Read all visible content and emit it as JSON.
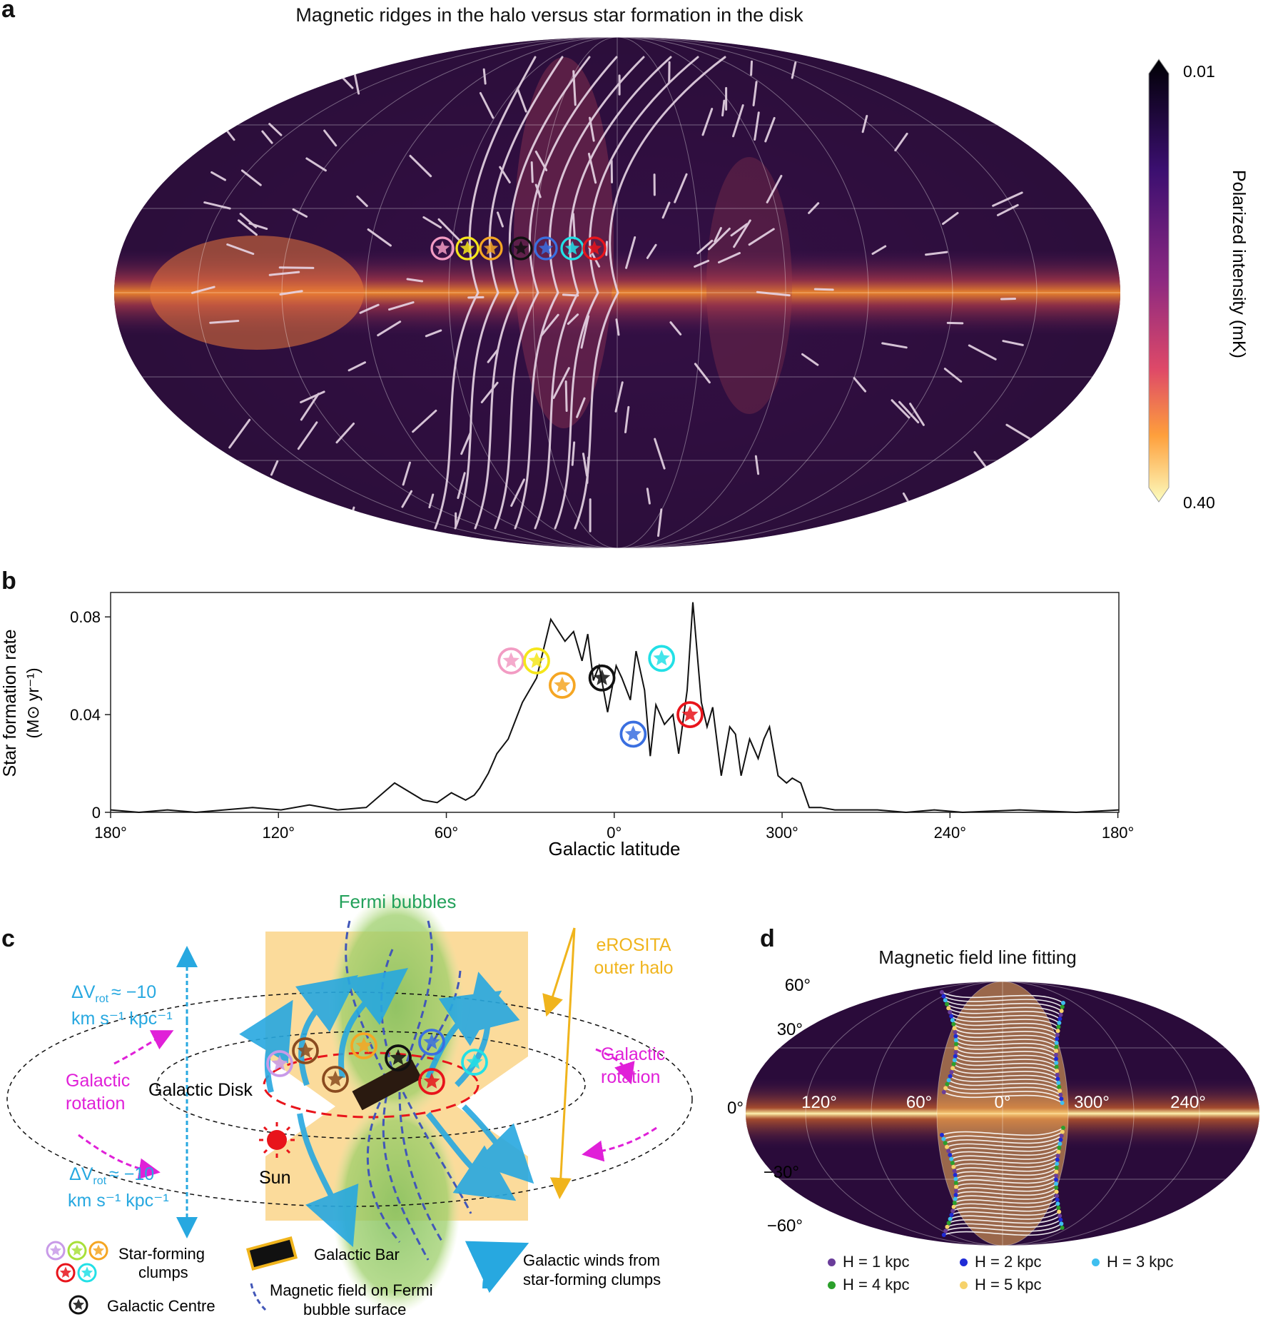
{
  "panel_a": {
    "label": "a",
    "title": "Magnetic ridges in the halo versus star formation in the disk",
    "colorbar": {
      "top": "0.01",
      "bottom": "0.40",
      "axis_label": "Polarized intensity (mK)"
    },
    "colors": {
      "dark": "#0d0519",
      "mid": "#6b1f6e",
      "orange": "#f07a1c",
      "bright": "#fff3a6"
    },
    "clumps": [
      {
        "color": "#f29bc3"
      },
      {
        "color": "#f5e61a"
      },
      {
        "color": "#f5a623"
      },
      {
        "color": "#111111"
      },
      {
        "color": "#3a6fe0"
      },
      {
        "color": "#22e0e6"
      },
      {
        "color": "#e8141b"
      }
    ]
  },
  "panel_b": {
    "label": "b",
    "chart_data": {
      "type": "line",
      "ylabel_line1": "Star formation rate",
      "ylabel_line2": "(M⊙ yr⁻¹)",
      "xlabel": "Galactic latitude",
      "yticks": [
        "0",
        "0.04",
        "0.08"
      ],
      "xticks": [
        "180°",
        "120°",
        "60°",
        "0°",
        "300°",
        "240°",
        "180°"
      ],
      "ylim": [
        0,
        0.09
      ],
      "x_offset_deg": [
        0,
        10,
        20,
        30,
        40,
        50,
        60,
        70,
        80,
        90,
        100,
        110,
        115,
        120,
        125,
        128,
        130,
        133,
        136,
        140,
        145,
        150,
        155,
        160,
        163,
        166,
        168,
        170,
        172,
        175,
        178,
        180,
        183,
        185,
        188,
        190,
        192,
        195,
        198,
        200,
        203,
        205,
        208,
        210,
        212,
        215,
        218,
        220,
        222,
        225,
        228,
        230,
        232,
        235,
        238,
        240,
        243,
        246,
        250,
        255,
        260,
        270,
        280,
        290,
        300,
        320,
        340,
        355
      ],
      "values": [
        0.001,
        0.0,
        0.001,
        0.0,
        0.001,
        0.002,
        0.001,
        0.003,
        0.001,
        0.002,
        0.012,
        0.005,
        0.004,
        0.008,
        0.005,
        0.007,
        0.01,
        0.016,
        0.024,
        0.03,
        0.045,
        0.055,
        0.079,
        0.07,
        0.074,
        0.062,
        0.073,
        0.054,
        0.06,
        0.041,
        0.06,
        0.055,
        0.046,
        0.066,
        0.05,
        0.023,
        0.044,
        0.036,
        0.04,
        0.024,
        0.05,
        0.086,
        0.045,
        0.035,
        0.043,
        0.015,
        0.035,
        0.032,
        0.015,
        0.03,
        0.022,
        0.03,
        0.035,
        0.015,
        0.012,
        0.014,
        0.012,
        0.002,
        0.002,
        0.001,
        0.001,
        0.001,
        0.0,
        0.001,
        0.0,
        0.001,
        0.0,
        0.001
      ],
      "markers": [
        {
          "x_offset_deg": 141,
          "value": 0.062,
          "color": "#f29bc3"
        },
        {
          "x_offset_deg": 150,
          "value": 0.062,
          "color": "#f5e61a"
        },
        {
          "x_offset_deg": 159,
          "value": 0.052,
          "color": "#f5a623"
        },
        {
          "x_offset_deg": 173,
          "value": 0.055,
          "color": "#111111"
        },
        {
          "x_offset_deg": 184,
          "value": 0.032,
          "color": "#3a6fe0"
        },
        {
          "x_offset_deg": 194,
          "value": 0.063,
          "color": "#22e0e6"
        },
        {
          "x_offset_deg": 204,
          "value": 0.04,
          "color": "#e8141b"
        }
      ],
      "x_range_deg": [
        0,
        355
      ]
    }
  },
  "panel_c": {
    "label": "c",
    "fermi": "Fermi bubbles",
    "erosita_1": "eROSITA",
    "erosita_2": "outer halo",
    "dv_top": "ΔV",
    "dv_sub": "rot",
    "dv_val": "≈ −10",
    "dv_units": "km s⁻¹ kpc⁻¹",
    "rotation_1": "Galactic",
    "rotation_2": "rotation",
    "disk": "Galactic Disk",
    "sun": "Sun",
    "legend": {
      "clumps_1": "Star-forming",
      "clumps_2": "clumps",
      "centre": "Galactic Centre",
      "bar": "Galactic Bar",
      "field_1": "Magnetic field on Fermi",
      "field_2": "bubble surface",
      "winds_1": "Galactic winds from",
      "winds_2": "star-forming clumps"
    }
  },
  "panel_d": {
    "label": "d",
    "title": "Magnetic field line fitting",
    "lat_labels": [
      "60°",
      "30°",
      "0°",
      "−30°",
      "−60°"
    ],
    "lon_labels": [
      "120°",
      "60°",
      "0°",
      "300°",
      "240°"
    ],
    "legend": [
      {
        "text": "H = 1 kpc",
        "color": "#6a3d9a"
      },
      {
        "text": "H = 2 kpc",
        "color": "#1f2bd6"
      },
      {
        "text": "H = 3 kpc",
        "color": "#3fbfef"
      },
      {
        "text": "H = 4 kpc",
        "color": "#2ca02c"
      },
      {
        "text": "H = 5 kpc",
        "color": "#f6d26b"
      }
    ]
  }
}
